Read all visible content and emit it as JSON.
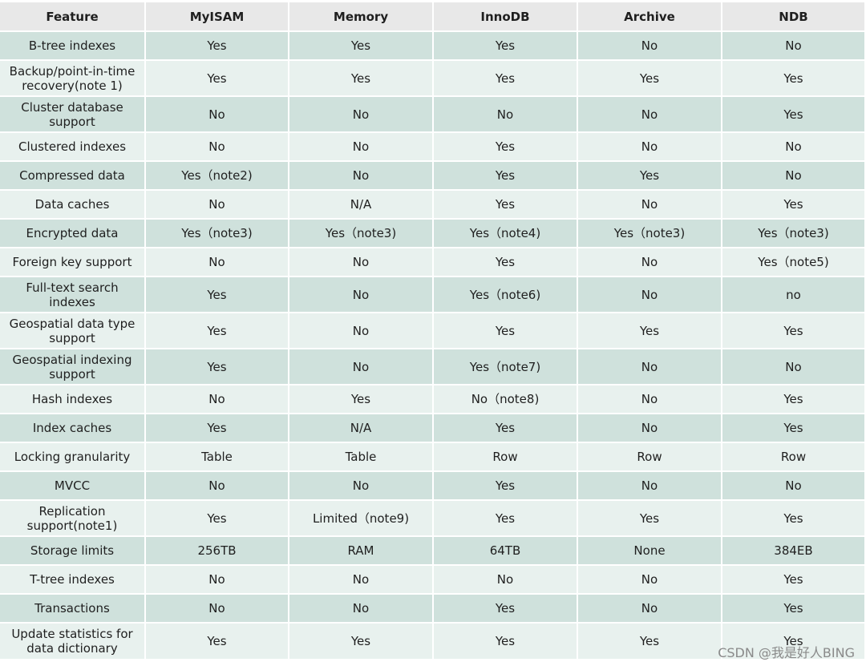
{
  "columns": [
    "Feature",
    "MyISAM",
    "Memory",
    "InnoDB",
    "Archive",
    "NDB"
  ],
  "rows": [
    {
      "feature": "B-tree indexes",
      "values": [
        "Yes",
        "Yes",
        "Yes",
        "No",
        "No"
      ]
    },
    {
      "feature": "Backup/point-in-time recovery(note 1)",
      "values": [
        "Yes",
        "Yes",
        "Yes",
        "Yes",
        "Yes"
      ]
    },
    {
      "feature": "Cluster database support",
      "values": [
        "No",
        "No",
        "No",
        "No",
        "Yes"
      ]
    },
    {
      "feature": "Clustered indexes",
      "values": [
        "No",
        "No",
        "Yes",
        "No",
        "No"
      ]
    },
    {
      "feature": "Compressed data",
      "values": [
        "Yes（note2)",
        "No",
        "Yes",
        "Yes",
        "No"
      ]
    },
    {
      "feature": "Data caches",
      "values": [
        "No",
        "N/A",
        "Yes",
        "No",
        "Yes"
      ]
    },
    {
      "feature": "Encrypted data",
      "values": [
        "Yes（note3)",
        "Yes（note3)",
        "Yes（note4)",
        "Yes（note3)",
        "Yes（note3)"
      ]
    },
    {
      "feature": "Foreign key support",
      "values": [
        "No",
        "No",
        "Yes",
        "No",
        "Yes（note5)"
      ]
    },
    {
      "feature": "Full-text search indexes",
      "values": [
        "Yes",
        "No",
        "Yes（note6)",
        "No",
        "no"
      ]
    },
    {
      "feature": "Geospatial data type support",
      "values": [
        "Yes",
        "No",
        "Yes",
        "Yes",
        "Yes"
      ]
    },
    {
      "feature": "Geospatial indexing support",
      "values": [
        "Yes",
        "No",
        "Yes（note7)",
        "No",
        "No"
      ]
    },
    {
      "feature": "Hash indexes",
      "values": [
        "No",
        "Yes",
        "No（note8)",
        "No",
        "Yes"
      ]
    },
    {
      "feature": "Index caches",
      "values": [
        "Yes",
        "N/A",
        "Yes",
        "No",
        "Yes"
      ]
    },
    {
      "feature": "Locking granularity",
      "values": [
        "Table",
        "Table",
        "Row",
        "Row",
        "Row"
      ]
    },
    {
      "feature": "MVCC",
      "values": [
        "No",
        "No",
        "Yes",
        "No",
        "No"
      ]
    },
    {
      "feature": "Replication support(note1)",
      "values": [
        "Yes",
        "Limited（note9)",
        "Yes",
        "Yes",
        "Yes"
      ]
    },
    {
      "feature": "Storage limits",
      "values": [
        "256TB",
        "RAM",
        "64TB",
        "None",
        "384EB"
      ]
    },
    {
      "feature": "T-tree indexes",
      "values": [
        "No",
        "No",
        "No",
        "No",
        "Yes"
      ]
    },
    {
      "feature": "Transactions",
      "values": [
        "No",
        "No",
        "Yes",
        "No",
        "Yes"
      ]
    },
    {
      "feature": "Update statistics for data dictionary",
      "values": [
        "Yes",
        "Yes",
        "Yes",
        "Yes",
        "Yes"
      ]
    }
  ],
  "watermark": "CSDN @我是好人BING",
  "colors": {
    "header_bg": "#e8e8e8",
    "row_dark": "#cfe1dc",
    "row_light": "#e8f1ee"
  }
}
